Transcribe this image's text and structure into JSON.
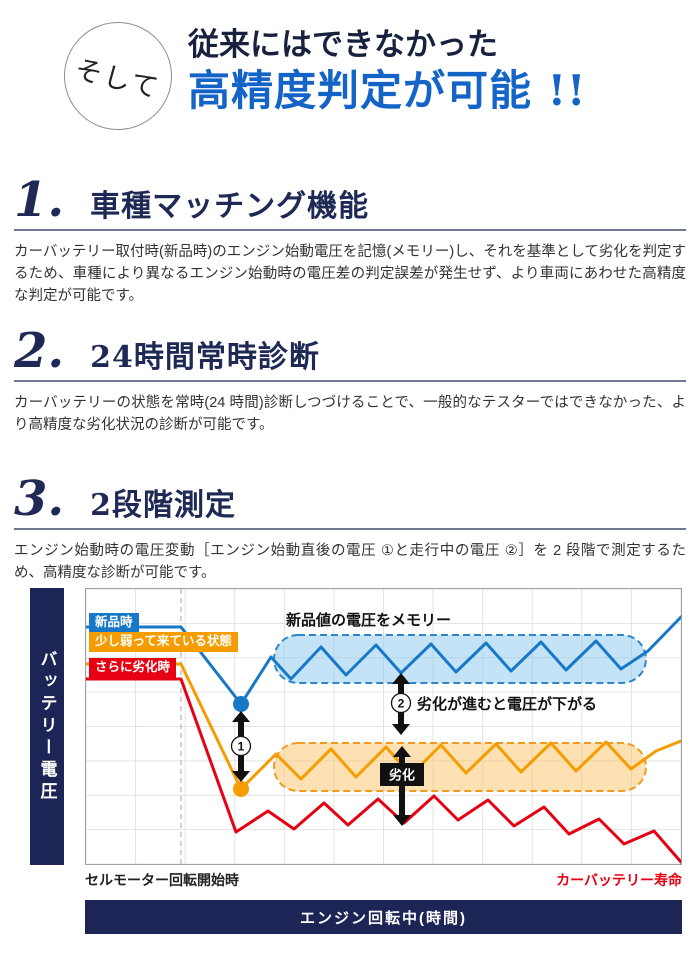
{
  "hero": {
    "badge": "そして",
    "line1": "従来にはできなかった",
    "line2": "高精度判定が可能 !!"
  },
  "colors": {
    "navy": "#1d2556",
    "headline_blue": "#1464c8",
    "line_new": "#1878c8",
    "line_weak": "#f59c00",
    "line_bad": "#e60012"
  },
  "sections": [
    {
      "number": "1.",
      "title": "車種マッチング機能",
      "body": "カーバッテリー取付時(新品時)のエンジン始動電圧を記憶(メモリー)し、それを基準として劣化を判定するため、車種により異なるエンジン始動時の電圧差の判定誤差が発生せず、より車両にあわせた高精度な判定が可能です。"
    },
    {
      "number": "2.",
      "title": "24時間常時診断",
      "body": "カーバッテリーの状態を常時(24 時間)診断しつづけることで、一般的なテスターではできなかった、より高精度な劣化状況の診断が可能です。"
    },
    {
      "number": "3.",
      "title": "2段階測定",
      "body": "エンジン始動時の電圧変動［エンジン始動直後の電圧 ①と走行中の電圧 ②］を 2 段階で測定するため、高精度な診断が可能です。"
    }
  ],
  "chart": {
    "y_axis_label": "バッテリー電圧",
    "x_axis_label": "エンジン回転中(時間)",
    "x_start_label": "セルモーター回転開始時",
    "x_end_label": "カーバッテリー寿命",
    "series_labels": [
      {
        "label": "新品時"
      },
      {
        "label": "少し弱って来ている状態"
      },
      {
        "label": "さらに劣化時"
      }
    ],
    "annotations": {
      "memory": "新品値の電圧をメモリー",
      "drop": "劣化が進むと電圧が下がる",
      "deterioration": "劣化",
      "n1": "1",
      "n2": "2"
    }
  },
  "chart_data": {
    "type": "line",
    "title": "",
    "xlabel": "エンジン回転中(時間)",
    "ylabel": "バッテリー電圧",
    "grid": true,
    "series": [
      {
        "name": "新品時",
        "color": "#1878c8",
        "points": [
          [
            0,
            38
          ],
          [
            95,
            38
          ],
          [
            155,
            115
          ],
          [
            185,
            68
          ],
          [
            205,
            90
          ],
          [
            235,
            58
          ],
          [
            260,
            86
          ],
          [
            290,
            56
          ],
          [
            315,
            84
          ],
          [
            345,
            55
          ],
          [
            370,
            83
          ],
          [
            400,
            54
          ],
          [
            425,
            82
          ],
          [
            455,
            53
          ],
          [
            480,
            81
          ],
          [
            510,
            52
          ],
          [
            535,
            80
          ],
          [
            562,
            62
          ],
          [
            595,
            28
          ]
        ]
      },
      {
        "name": "少し弱って来ている状態",
        "color": "#f59c00",
        "points": [
          [
            0,
            75
          ],
          [
            95,
            75
          ],
          [
            155,
            200
          ],
          [
            190,
            165
          ],
          [
            215,
            190
          ],
          [
            245,
            160
          ],
          [
            270,
            188
          ],
          [
            300,
            158
          ],
          [
            325,
            186
          ],
          [
            355,
            156
          ],
          [
            380,
            184
          ],
          [
            410,
            155
          ],
          [
            435,
            183
          ],
          [
            465,
            154
          ],
          [
            490,
            182
          ],
          [
            520,
            153
          ],
          [
            545,
            180
          ],
          [
            570,
            162
          ],
          [
            595,
            152
          ]
        ]
      },
      {
        "name": "さらに劣化時",
        "color": "#e60012",
        "points": [
          [
            0,
            90
          ],
          [
            95,
            90
          ],
          [
            150,
            243
          ],
          [
            182,
            222
          ],
          [
            208,
            240
          ],
          [
            238,
            214
          ],
          [
            262,
            236
          ],
          [
            292,
            210
          ],
          [
            318,
            234
          ],
          [
            348,
            207
          ],
          [
            372,
            231
          ],
          [
            402,
            211
          ],
          [
            428,
            237
          ],
          [
            458,
            218
          ],
          [
            483,
            245
          ],
          [
            513,
            230
          ],
          [
            538,
            255
          ],
          [
            568,
            242
          ],
          [
            595,
            273
          ]
        ]
      }
    ]
  }
}
